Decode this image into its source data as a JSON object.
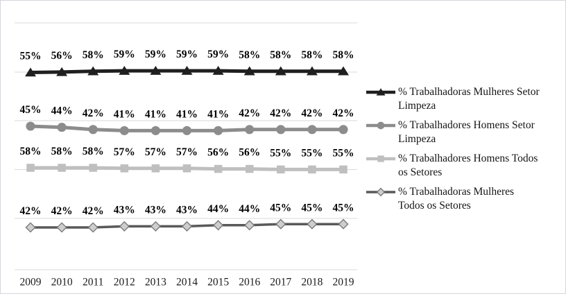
{
  "chart_data": {
    "type": "line",
    "x": [
      2009,
      2010,
      2011,
      2012,
      2013,
      2014,
      2015,
      2016,
      2017,
      2018,
      2019
    ],
    "series": [
      {
        "name": "% Trabalhadoras Mulheres Setor Limpeza",
        "marker": "triangle",
        "color": "#1f1f1f",
        "marker_fill": "#1f1f1f",
        "values": [
          55,
          56,
          58,
          59,
          59,
          59,
          59,
          58,
          58,
          58,
          58
        ]
      },
      {
        "name": "% Trabalhadores Homens Setor Limpeza",
        "marker": "circle",
        "color": "#8c8c8c",
        "marker_fill": "#8c8c8c",
        "values": [
          45,
          44,
          42,
          41,
          41,
          41,
          41,
          42,
          42,
          42,
          42
        ]
      },
      {
        "name": "% Trabalhadores Homens Todos os Setores",
        "marker": "square",
        "color": "#bfbfbf",
        "marker_fill": "#bfbfbf",
        "values": [
          58,
          58,
          58,
          57,
          57,
          57,
          56,
          56,
          55,
          55,
          55
        ]
      },
      {
        "name": "% Trabalhadoras Mulheres Todos os Setores",
        "marker": "diamond",
        "color": "#595959",
        "marker_fill": "#cecece",
        "marker_stroke": "#7a7a7a",
        "values": [
          42,
          42,
          42,
          43,
          43,
          43,
          44,
          44,
          45,
          45,
          45
        ]
      }
    ],
    "data_label_format": "{value}%",
    "data_labels": true,
    "grid": true,
    "gridline_color": "#d9d9d9",
    "legend_position": "right",
    "y_axis_visible": false,
    "text_color": "#000000"
  },
  "legend": {
    "items": [
      {
        "marker": "triangle",
        "lines": [
          "% Trabalhadoras Mulheres Setor",
          "Limpeza"
        ]
      },
      {
        "marker": "circle",
        "lines": [
          "% Trabalhadores Homens Setor",
          "Limpeza"
        ]
      },
      {
        "marker": "square",
        "lines": [
          "% Trabalhadores Homens Todos",
          "os Setores"
        ]
      },
      {
        "marker": "diamond",
        "lines": [
          "% Trabalhadoras Mulheres",
          "Todos os Setores"
        ]
      }
    ]
  }
}
